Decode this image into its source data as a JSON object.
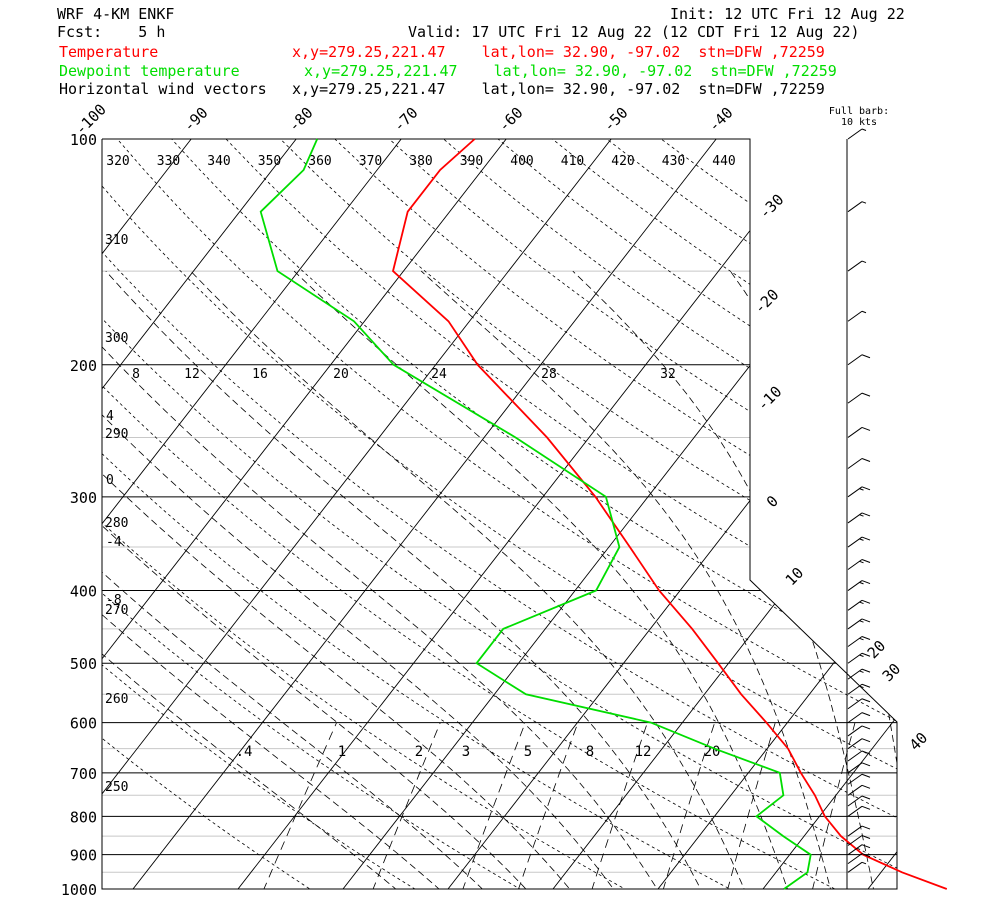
{
  "header": {
    "model": "WRF 4-KM ENKF",
    "init": "Init: 12 UTC Fri 12 Aug 22",
    "fcst": "Fcst:    5 h",
    "valid": "Valid: 17 UTC Fri 12 Aug 22 (12 CDT Fri 12 Aug 22)"
  },
  "legend": [
    {
      "label": "Temperature",
      "info": "x,y=279.25,221.47    lat,lon= 32.90, -97.02  stn=DFW ,72259",
      "color": "#ff0000"
    },
    {
      "label": "Dewpoint temperature",
      "info": "x,y=279.25,221.47    lat,lon= 32.90, -97.02  stn=DFW ,72259",
      "color": "#00dd00"
    },
    {
      "label": "Horizontal wind vectors",
      "info": "x,y=279.25,221.47    lat,lon= 32.90, -97.02  stn=DFW ,72259",
      "color": "#000000"
    }
  ],
  "barb_note": [
    "Full barb:",
    "10 kts"
  ],
  "chart_data": {
    "type": "line",
    "chart_kind": "skew-T log-p sounding",
    "pressure_axis": {
      "label_values": [
        100,
        200,
        300,
        400,
        500,
        600,
        700,
        800,
        900,
        1000
      ],
      "scale": "log",
      "range": [
        100,
        1000
      ]
    },
    "isotherm_labels_top": [
      -100,
      -90,
      -80,
      -70,
      -60,
      -50,
      -40
    ],
    "isotherm_labels_right": [
      -30,
      -20,
      -10,
      0,
      10,
      20,
      30,
      40
    ],
    "theta_labels_top": [
      320,
      330,
      340,
      350,
      360,
      370,
      380,
      390,
      400,
      410,
      420,
      430,
      440
    ],
    "theta_labels_left": [
      310,
      300,
      290,
      280,
      270,
      260,
      250
    ],
    "thetae_labels": [
      8,
      12,
      16,
      20,
      24,
      28,
      32
    ],
    "thetae_labels_left": [
      4,
      0,
      -4,
      -8
    ],
    "mixing_ratio_labels": [
      ".4",
      "1",
      "2",
      "3",
      "5",
      "8",
      "12",
      "20"
    ],
    "series": [
      {
        "name": "Temperature",
        "color": "#ff0000",
        "points": [
          [
            1000,
            37.5
          ],
          [
            950,
            32
          ],
          [
            900,
            27
          ],
          [
            850,
            23.5
          ],
          [
            800,
            20.5
          ],
          [
            750,
            18
          ],
          [
            700,
            15
          ],
          [
            650,
            12
          ],
          [
            600,
            8
          ],
          [
            550,
            3.5
          ],
          [
            500,
            -1
          ],
          [
            450,
            -6
          ],
          [
            400,
            -12
          ],
          [
            350,
            -18
          ],
          [
            300,
            -25
          ],
          [
            250,
            -34
          ],
          [
            200,
            -46
          ],
          [
            175,
            -52
          ],
          [
            150,
            -61
          ],
          [
            125,
            -64
          ],
          [
            110,
            -64
          ],
          [
            100,
            -63
          ]
        ]
      },
      {
        "name": "Dewpoint temperature",
        "color": "#00dd00",
        "points": [
          [
            1000,
            22
          ],
          [
            950,
            23
          ],
          [
            900,
            22
          ],
          [
            850,
            18
          ],
          [
            800,
            14
          ],
          [
            750,
            15
          ],
          [
            700,
            13
          ],
          [
            650,
            5
          ],
          [
            600,
            -3
          ],
          [
            550,
            -17
          ],
          [
            500,
            -24
          ],
          [
            450,
            -24
          ],
          [
            400,
            -18
          ],
          [
            350,
            -19
          ],
          [
            300,
            -24
          ],
          [
            250,
            -37
          ],
          [
            200,
            -54
          ],
          [
            175,
            -61
          ],
          [
            150,
            -72
          ],
          [
            125,
            -78
          ],
          [
            110,
            -77
          ],
          [
            100,
            -78
          ]
        ]
      }
    ],
    "wind": [
      {
        "p": 1000,
        "kts": 0
      },
      {
        "p": 950,
        "kts": 5
      },
      {
        "p": 925,
        "kts": 10
      },
      {
        "p": 900,
        "kts": 10
      },
      {
        "p": 875,
        "kts": 10
      },
      {
        "p": 850,
        "kts": 10
      },
      {
        "p": 800,
        "kts": 10
      },
      {
        "p": 775,
        "kts": 10
      },
      {
        "p": 750,
        "kts": 10
      },
      {
        "p": 725,
        "kts": 10
      },
      {
        "p": 700,
        "kts": 10
      },
      {
        "p": 675,
        "kts": 10
      },
      {
        "p": 650,
        "kts": 10
      },
      {
        "p": 625,
        "kts": 10
      },
      {
        "p": 600,
        "kts": 10
      },
      {
        "p": 575,
        "kts": 10
      },
      {
        "p": 550,
        "kts": 15
      },
      {
        "p": 525,
        "kts": 15
      },
      {
        "p": 500,
        "kts": 15
      },
      {
        "p": 475,
        "kts": 15
      },
      {
        "p": 450,
        "kts": 15
      },
      {
        "p": 425,
        "kts": 15
      },
      {
        "p": 400,
        "kts": 15
      },
      {
        "p": 375,
        "kts": 15
      },
      {
        "p": 350,
        "kts": 15
      },
      {
        "p": 325,
        "kts": 15
      },
      {
        "p": 300,
        "kts": 15
      },
      {
        "p": 275,
        "kts": 10
      },
      {
        "p": 250,
        "kts": 10
      },
      {
        "p": 225,
        "kts": 10
      },
      {
        "p": 200,
        "kts": 10
      },
      {
        "p": 175,
        "kts": 5
      },
      {
        "p": 150,
        "kts": 5
      },
      {
        "p": 125,
        "kts": 5
      },
      {
        "p": 100,
        "kts": 5
      }
    ]
  }
}
